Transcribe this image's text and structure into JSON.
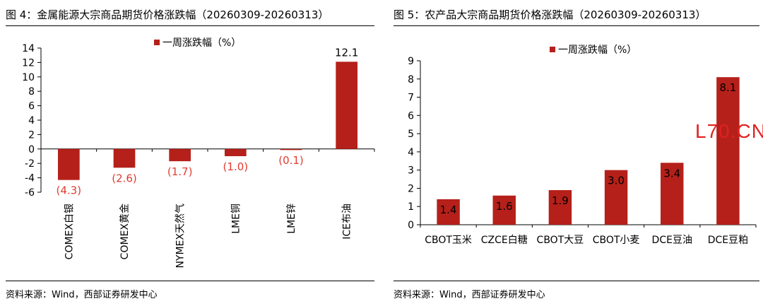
{
  "colors": {
    "bar": "#b5201a",
    "negative_label": "#e03c31",
    "axis": "#000000",
    "watermark": "#e02020"
  },
  "left": {
    "title": "图 4：金属能源大宗商品期货价格涨跌幅（20260309-20260313）",
    "source": "资料来源：Wind，西部证券研发中心"
  },
  "right": {
    "title": "图 5：农产品大宗商品期货价格涨跌幅（20260309-20260313）",
    "source": "资料来源：Wind，西部证券研发中心",
    "watermark": "L70.CN"
  },
  "chart_data": [
    {
      "type": "bar",
      "title": "",
      "legend": {
        "entries": [
          "一周涨跌幅（%）"
        ],
        "position": "top"
      },
      "categories": [
        "COMEX白银",
        "COMEX黄金",
        "NYMEX天然气",
        "LME铜",
        "LME锌",
        "ICE布油"
      ],
      "series": [
        {
          "name": "一周涨跌幅（%）",
          "values": [
            -4.3,
            -2.6,
            -1.7,
            -1.0,
            -0.1,
            12.1
          ]
        }
      ],
      "data_labels": [
        "(4.3)",
        "(2.6)",
        "(1.7)",
        "(1.0)",
        "(0.1)",
        "12.1"
      ],
      "ylim": [
        -6,
        14
      ],
      "yticks": [
        -6,
        -4,
        -2,
        0,
        2,
        4,
        6,
        8,
        10,
        12,
        14
      ],
      "ytick_labels": [
        "-6",
        "-4",
        "-2",
        "0",
        "2",
        "4",
        "6",
        "8",
        "10",
        "12",
        "14"
      ],
      "grid": false,
      "xlabel": "",
      "ylabel": ""
    },
    {
      "type": "bar",
      "title": "",
      "legend": {
        "entries": [
          "一周涨跌幅（%）"
        ],
        "position": "top"
      },
      "categories": [
        "CBOT玉米",
        "CZCE白糖",
        "CBOT大豆",
        "CBOT小麦",
        "DCE豆油",
        "DCE豆粕"
      ],
      "series": [
        {
          "name": "一周涨跌幅（%）",
          "values": [
            1.4,
            1.6,
            1.9,
            3.0,
            3.4,
            8.1
          ]
        }
      ],
      "data_labels": [
        "1.4",
        "1.6",
        "1.9",
        "3.0",
        "3.4",
        "8.1"
      ],
      "ylim": [
        0,
        9
      ],
      "yticks": [
        0,
        1,
        2,
        3,
        4,
        5,
        6,
        7,
        8,
        9
      ],
      "ytick_labels": [
        "0",
        "1",
        "2",
        "3",
        "4",
        "5",
        "6",
        "7",
        "8",
        "9"
      ],
      "grid": false,
      "xlabel": "",
      "ylabel": ""
    }
  ]
}
